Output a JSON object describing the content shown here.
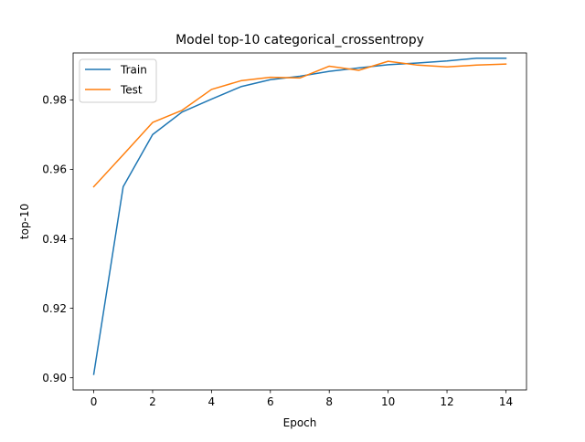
{
  "chart_data": {
    "type": "line",
    "title": "Model top-10 categorical_crossentropy",
    "xlabel": "Epoch",
    "ylabel": "top-10",
    "x": [
      0,
      1,
      2,
      3,
      4,
      5,
      6,
      7,
      8,
      9,
      10,
      11,
      12,
      13,
      14
    ],
    "xlim": [
      -0.7,
      14.7
    ],
    "ylim": [
      0.8965,
      0.9935
    ],
    "xticks": [
      0,
      2,
      4,
      6,
      8,
      10,
      12,
      14
    ],
    "yticks": [
      0.9,
      0.92,
      0.94,
      0.96,
      0.98
    ],
    "xtick_labels": [
      "0",
      "2",
      "4",
      "6",
      "8",
      "10",
      "12",
      "14"
    ],
    "ytick_labels": [
      "0.90",
      "0.92",
      "0.94",
      "0.96",
      "0.98"
    ],
    "grid": false,
    "legend_position": "upper-left",
    "series": [
      {
        "name": "Train",
        "color": "#1f77b4",
        "values": [
          0.901,
          0.955,
          0.97,
          0.9765,
          0.9802,
          0.9838,
          0.9858,
          0.9868,
          0.9882,
          0.9892,
          0.9901,
          0.9906,
          0.9912,
          0.992,
          0.992
        ]
      },
      {
        "name": "Test",
        "color": "#ff7f0e",
        "values": [
          0.955,
          0.9642,
          0.9735,
          0.977,
          0.983,
          0.9855,
          0.9865,
          0.9863,
          0.9897,
          0.9885,
          0.9911,
          0.99,
          0.9895,
          0.99,
          0.9903
        ]
      }
    ]
  }
}
